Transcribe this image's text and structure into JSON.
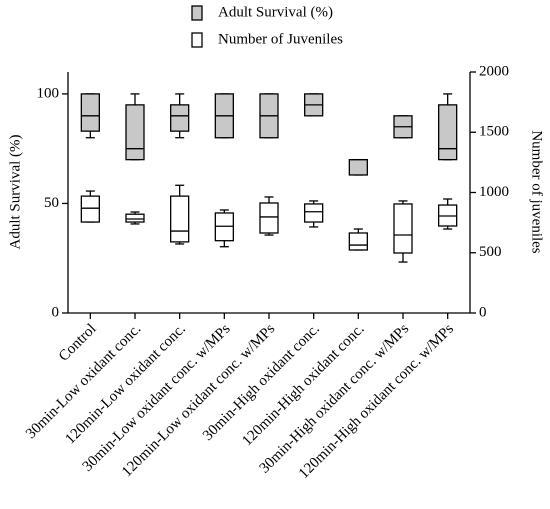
{
  "chart_data": {
    "type": "box",
    "categories": [
      "Control",
      "30min-Low oxidant conc.",
      "120min-Low oxidant conc.",
      "30min-Low oxidant conc. w/MPs",
      "120min-Low oxidant conc. w/MPs",
      "30min-High oxidant conc.",
      "120min-High oxidant conc.",
      "30min-High oxidant conc. w/MPs",
      "120min-High oxidant conc. w/MPs"
    ],
    "y_label": "Adult Survival (%)",
    "y2_label": "Number of juveniles",
    "ylim": [
      0,
      110
    ],
    "yticks": [
      0,
      50,
      100
    ],
    "y2lim": [
      0,
      2000
    ],
    "y2ticks": [
      0,
      500,
      1000,
      1500,
      2000
    ],
    "series": [
      {
        "name": "Adult Survival (%)",
        "color": "#c8c8c8",
        "axis": "y",
        "min": [
          80,
          70,
          80,
          80,
          80,
          90,
          63,
          80,
          70
        ],
        "q1": [
          83,
          70,
          83,
          80,
          80,
          90,
          63,
          80,
          70
        ],
        "median": [
          90,
          75,
          90,
          90,
          90,
          95,
          70,
          85,
          75
        ],
        "q3": [
          100,
          95,
          95,
          100,
          100,
          100,
          70,
          90,
          95
        ],
        "max": [
          100,
          100,
          100,
          100,
          100,
          100,
          70,
          90,
          100
        ]
      },
      {
        "name": "Number of Juveniles",
        "color": "#ffffff",
        "axis": "y2",
        "min": [
          755,
          739,
          573,
          550,
          647,
          714,
          523,
          423,
          697
        ],
        "q1": [
          755,
          755,
          590,
          600,
          664,
          755,
          523,
          498,
          722
        ],
        "median": [
          870,
          780,
          680,
          720,
          797,
          840,
          564,
          647,
          805
        ],
        "q3": [
          970,
          820,
          970,
          830,
          913,
          905,
          664,
          905,
          896
        ],
        "max": [
          1012,
          838,
          1060,
          855,
          963,
          930,
          697,
          930,
          946
        ]
      }
    ]
  }
}
